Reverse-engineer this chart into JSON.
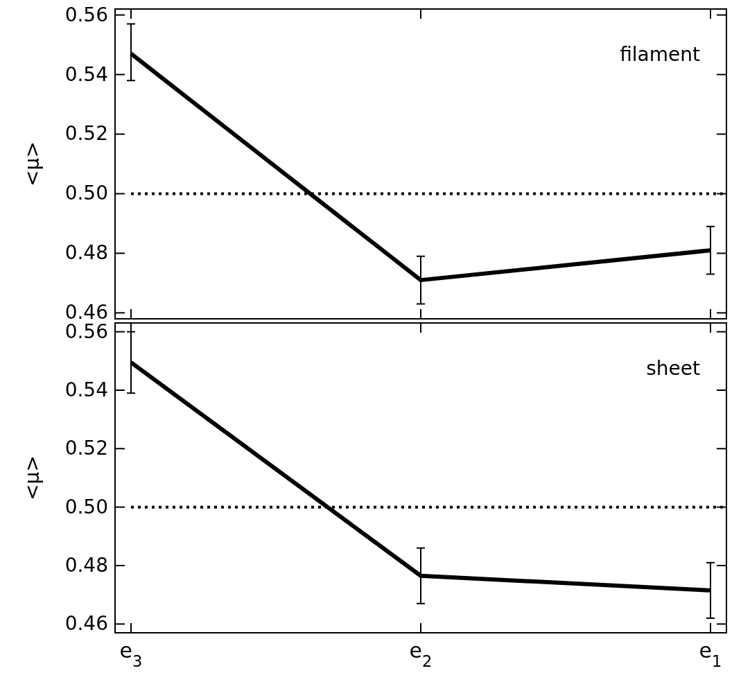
{
  "chart_data": [
    {
      "type": "line",
      "categories": [
        null,
        null,
        null
      ],
      "ylabel": "<μ>",
      "annotations": [
        "filament"
      ],
      "tick_labels": "y",
      "ylim": [
        0.458,
        0.562
      ],
      "yticks": [
        {
          "value": 0.46,
          "label": "0.46"
        },
        {
          "value": 0.48,
          "label": "0.48"
        },
        {
          "value": 0.5,
          "label": "0.50"
        },
        {
          "value": 0.52,
          "label": "0.52"
        },
        {
          "value": 0.54,
          "label": "0.54"
        },
        {
          "value": 0.56,
          "label": "0.56"
        }
      ],
      "ref_lines": [
        {
          "axis": "y",
          "value": 0.5,
          "line_style": "dotted"
        }
      ],
      "series": [
        {
          "color": "#000000",
          "values": [
            0.547,
            0.471,
            0.481
          ],
          "errors": [
            [
              0.538,
              0.557
            ],
            [
              0.463,
              0.479
            ],
            [
              0.473,
              0.489
            ]
          ]
        }
      ]
    },
    {
      "type": "line",
      "categories": [
        "e$_{3}$",
        "e$_{2}$",
        "e$_{1}$"
      ],
      "ylabel": "<μ>",
      "annotations": [
        "sheet"
      ],
      "ylim": [
        0.457,
        0.563
      ],
      "yticks": [
        {
          "value": 0.46,
          "label": "0.46"
        },
        {
          "value": 0.48,
          "label": "0.48"
        },
        {
          "value": 0.5,
          "label": "0.50"
        },
        {
          "value": 0.52,
          "label": "0.52"
        },
        {
          "value": 0.54,
          "label": "0.54"
        },
        {
          "value": 0.56,
          "label": "0.56"
        }
      ],
      "ref_lines": [
        {
          "axis": "y",
          "value": 0.5,
          "line_style": "dotted"
        }
      ],
      "series": [
        {
          "color": "#000000",
          "values": [
            0.5495,
            0.4765,
            0.4715
          ],
          "errors": [
            [
              0.539,
              0.56
            ],
            [
              0.467,
              0.486
            ],
            [
              0.462,
              0.481
            ]
          ]
        }
      ]
    }
  ]
}
